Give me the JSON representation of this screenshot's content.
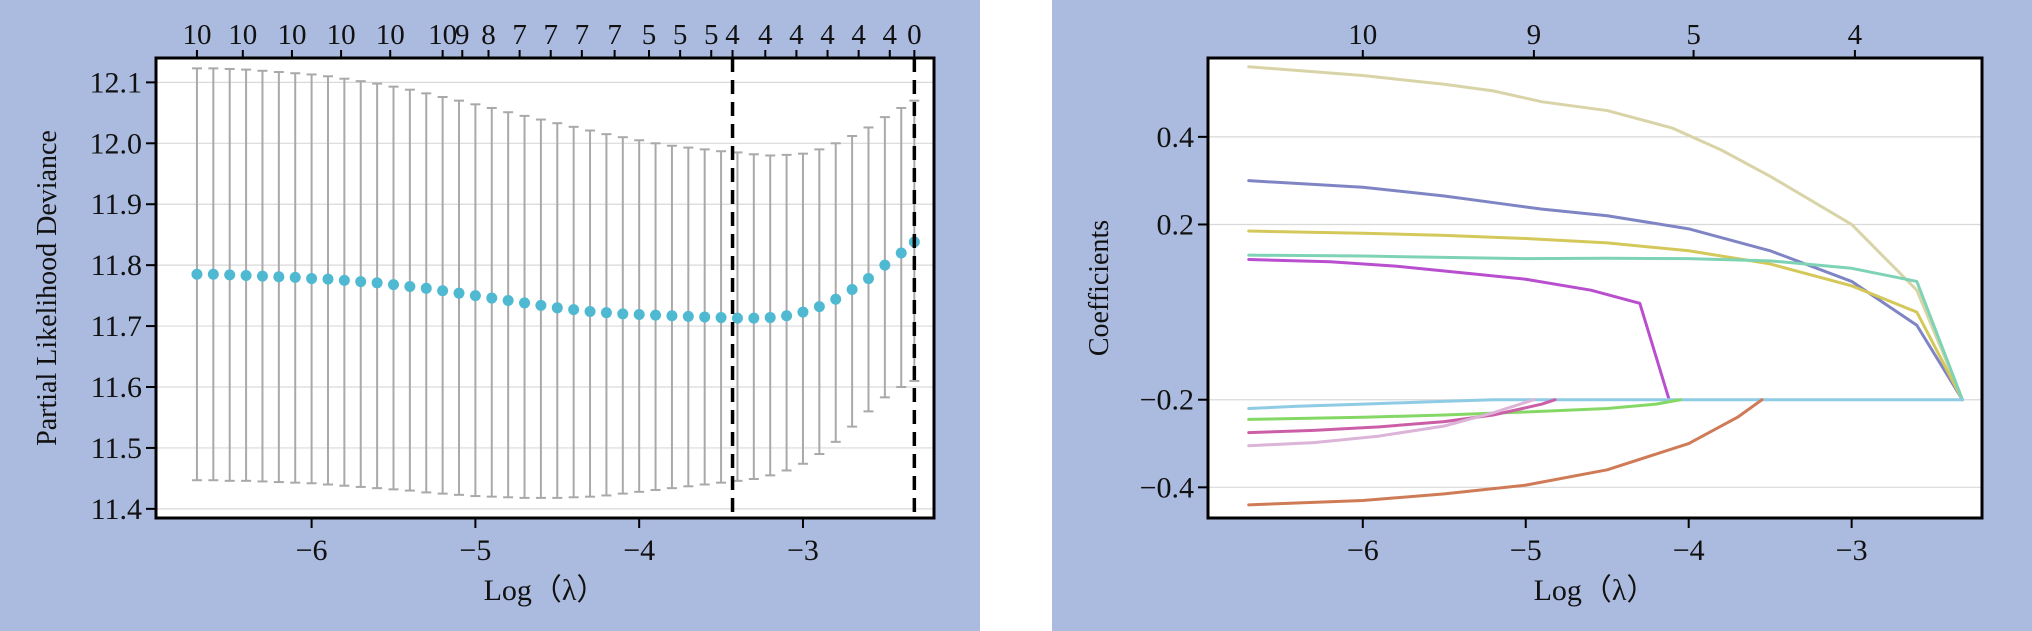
{
  "colors": {
    "panel_bg": "#abbadf",
    "plot_bg": "#ffffff",
    "grid": "#d9d9d9",
    "errorbar": "#a9a9a9",
    "point": "#4fb9d2",
    "vline": "#000000"
  },
  "chart_data": [
    {
      "type": "scatter",
      "xlabel": "Log（λ）",
      "ylabel": "Partial Likelihood Deviance",
      "xlim": [
        -6.95,
        -2.2
      ],
      "ylim": [
        11.385,
        12.14
      ],
      "xticks": [
        -6,
        -5,
        -4,
        -3
      ],
      "xtick_labels": [
        "−6",
        "−5",
        "−4",
        "−3"
      ],
      "yticks": [
        11.4,
        11.5,
        11.6,
        11.7,
        11.8,
        11.9,
        12.0,
        12.1
      ],
      "ytick_labels": [
        "11.4",
        "11.5",
        "11.6",
        "11.7",
        "11.8",
        "11.9",
        "12.0",
        "12.1"
      ],
      "grid": "horizontal",
      "top_axis": {
        "positions": [
          -6.7,
          -6.42,
          -6.12,
          -5.82,
          -5.52,
          -5.2,
          -5.08,
          -4.92,
          -4.73,
          -4.54,
          -4.35,
          -4.15,
          -3.94,
          -3.75,
          -3.56,
          -3.43,
          -3.23,
          -3.04,
          -2.85,
          -2.66,
          -2.47,
          -2.32
        ],
        "labels": [
          "10",
          "10",
          "10",
          "10",
          "10",
          "10",
          "9",
          "8",
          "7",
          "7",
          "7",
          "7",
          "5",
          "5",
          "5",
          "4",
          "4",
          "4",
          "4",
          "4",
          "4",
          "0"
        ]
      },
      "vlines": [
        -3.43,
        -2.32
      ],
      "series": [
        {
          "x": [
            -6.7,
            -6.6,
            -6.5,
            -6.4,
            -6.3,
            -6.2,
            -6.1,
            -6.0,
            -5.9,
            -5.8,
            -5.7,
            -5.6,
            -5.5,
            -5.4,
            -5.3,
            -5.2,
            -5.1,
            -5.0,
            -4.9,
            -4.8,
            -4.7,
            -4.6,
            -4.5,
            -4.4,
            -4.3,
            -4.2,
            -4.1,
            -4.0,
            -3.9,
            -3.8,
            -3.7,
            -3.6,
            -3.5,
            -3.4,
            -3.3,
            -3.2,
            -3.1,
            -3.0,
            -2.9,
            -2.8,
            -2.7,
            -2.6,
            -2.5,
            -2.4,
            -2.32
          ],
          "y": [
            11.785,
            11.785,
            11.784,
            11.783,
            11.782,
            11.781,
            11.78,
            11.778,
            11.777,
            11.775,
            11.773,
            11.771,
            11.768,
            11.765,
            11.762,
            11.758,
            11.754,
            11.75,
            11.746,
            11.742,
            11.738,
            11.734,
            11.73,
            11.727,
            11.724,
            11.722,
            11.72,
            11.719,
            11.718,
            11.717,
            11.716,
            11.715,
            11.714,
            11.713,
            11.713,
            11.714,
            11.717,
            11.723,
            11.732,
            11.744,
            11.76,
            11.778,
            11.8,
            11.82,
            11.838
          ],
          "lower": [
            11.447,
            11.447,
            11.446,
            11.446,
            11.445,
            11.444,
            11.443,
            11.442,
            11.44,
            11.438,
            11.436,
            11.434,
            11.432,
            11.43,
            11.427,
            11.425,
            11.423,
            11.421,
            11.42,
            11.419,
            11.418,
            11.418,
            11.418,
            11.419,
            11.42,
            11.422,
            11.425,
            11.428,
            11.431,
            11.434,
            11.437,
            11.44,
            11.443,
            11.446,
            11.449,
            11.455,
            11.463,
            11.474,
            11.49,
            11.51,
            11.535,
            11.56,
            11.583,
            11.6,
            11.61
          ],
          "upper": [
            12.123,
            12.123,
            12.122,
            12.121,
            12.119,
            12.117,
            12.115,
            12.113,
            12.11,
            12.106,
            12.102,
            12.098,
            12.093,
            12.088,
            12.082,
            12.076,
            12.07,
            12.064,
            12.058,
            12.051,
            12.045,
            12.039,
            12.033,
            12.027,
            12.021,
            12.015,
            12.01,
            12.005,
            12.0,
            11.996,
            11.993,
            11.99,
            11.987,
            11.985,
            11.982,
            11.98,
            11.981,
            11.983,
            11.99,
            12.0,
            12.012,
            12.026,
            12.043,
            12.058,
            12.07
          ]
        }
      ]
    },
    {
      "type": "line",
      "xlabel": "Log（λ）",
      "ylabel": "Coefficients",
      "xlim": [
        -6.95,
        -2.2
      ],
      "ylim": [
        -0.47,
        0.58
      ],
      "xticks": [
        -6,
        -5,
        -4,
        -3
      ],
      "xtick_labels": [
        "−6",
        "−5",
        "−4",
        "−3"
      ],
      "yticks": [
        -0.4,
        -0.2,
        0.2,
        0.4
      ],
      "ytick_labels": [
        "−0.4",
        "−0.2",
        "0.2",
        "0.4"
      ],
      "grid": "horizontal",
      "top_axis": {
        "positions": [
          -6.0,
          -4.95,
          -3.97,
          -2.98
        ],
        "labels": [
          "10",
          "9",
          "5",
          "4"
        ]
      },
      "series": [
        {
          "color": "#d9d4a8",
          "x": [
            -6.7,
            -6.0,
            -5.5,
            -5.2,
            -4.9,
            -4.5,
            -4.1,
            -3.8,
            -3.5,
            -3.0,
            -2.6,
            -2.32
          ],
          "y": [
            0.56,
            0.54,
            0.52,
            0.505,
            0.48,
            0.46,
            0.42,
            0.37,
            0.31,
            0.2,
            0.05,
            -0.2
          ]
        },
        {
          "color": "#7f85c4",
          "x": [
            -6.7,
            -6.0,
            -5.5,
            -5.2,
            -4.9,
            -4.5,
            -4.0,
            -3.5,
            -3.0,
            -2.6,
            -2.32
          ],
          "y": [
            0.3,
            0.285,
            0.265,
            0.25,
            0.235,
            0.22,
            0.19,
            0.14,
            0.07,
            -0.03,
            -0.2
          ]
        },
        {
          "color": "#d4c85a",
          "x": [
            -6.7,
            -6.0,
            -5.5,
            -5.0,
            -4.5,
            -4.0,
            -3.5,
            -3.0,
            -2.6,
            -2.32
          ],
          "y": [
            0.185,
            0.18,
            0.175,
            0.168,
            0.158,
            0.14,
            0.11,
            0.06,
            0.0,
            -0.2
          ]
        },
        {
          "color": "#7ed3b5",
          "x": [
            -6.7,
            -6.0,
            -5.5,
            -5.0,
            -4.5,
            -4.0,
            -3.5,
            -3.0,
            -2.6,
            -2.32
          ],
          "y": [
            0.13,
            0.128,
            0.125,
            0.122,
            0.123,
            0.122,
            0.117,
            0.1,
            0.07,
            -0.2
          ]
        },
        {
          "color": "#b94fcf",
          "x": [
            -6.7,
            -6.2,
            -5.8,
            -5.4,
            -5.0,
            -4.6,
            -4.3,
            -4.12
          ],
          "y": [
            0.12,
            0.115,
            0.105,
            0.09,
            0.075,
            0.05,
            0.02,
            -0.2
          ]
        },
        {
          "color": "#8fcbe4",
          "x": [
            -6.7,
            -6.4,
            -6.0,
            -5.6,
            -5.2,
            -2.32
          ],
          "y": [
            -0.22,
            -0.215,
            -0.21,
            -0.205,
            -0.2,
            -0.2
          ]
        },
        {
          "color": "#86d866",
          "x": [
            -6.7,
            -6.0,
            -5.5,
            -5.0,
            -4.5,
            -4.2,
            -4.05
          ],
          "y": [
            -0.245,
            -0.24,
            -0.235,
            -0.228,
            -0.22,
            -0.21,
            -0.2
          ]
        },
        {
          "color": "#cc5ea7",
          "x": [
            -6.7,
            -6.3,
            -5.9,
            -5.5,
            -5.2,
            -4.9,
            -4.82
          ],
          "y": [
            -0.275,
            -0.27,
            -0.262,
            -0.25,
            -0.235,
            -0.21,
            -0.2
          ]
        },
        {
          "color": "#dbb4d8",
          "x": [
            -6.7,
            -6.3,
            -5.9,
            -5.5,
            -5.2,
            -4.95
          ],
          "y": [
            -0.305,
            -0.298,
            -0.283,
            -0.26,
            -0.23,
            -0.2
          ]
        },
        {
          "color": "#cf7b57",
          "x": [
            -6.7,
            -6.0,
            -5.5,
            -5.0,
            -4.5,
            -4.0,
            -3.7,
            -3.55
          ],
          "y": [
            -0.44,
            -0.43,
            -0.415,
            -0.395,
            -0.36,
            -0.3,
            -0.24,
            -0.2
          ]
        }
      ]
    }
  ]
}
